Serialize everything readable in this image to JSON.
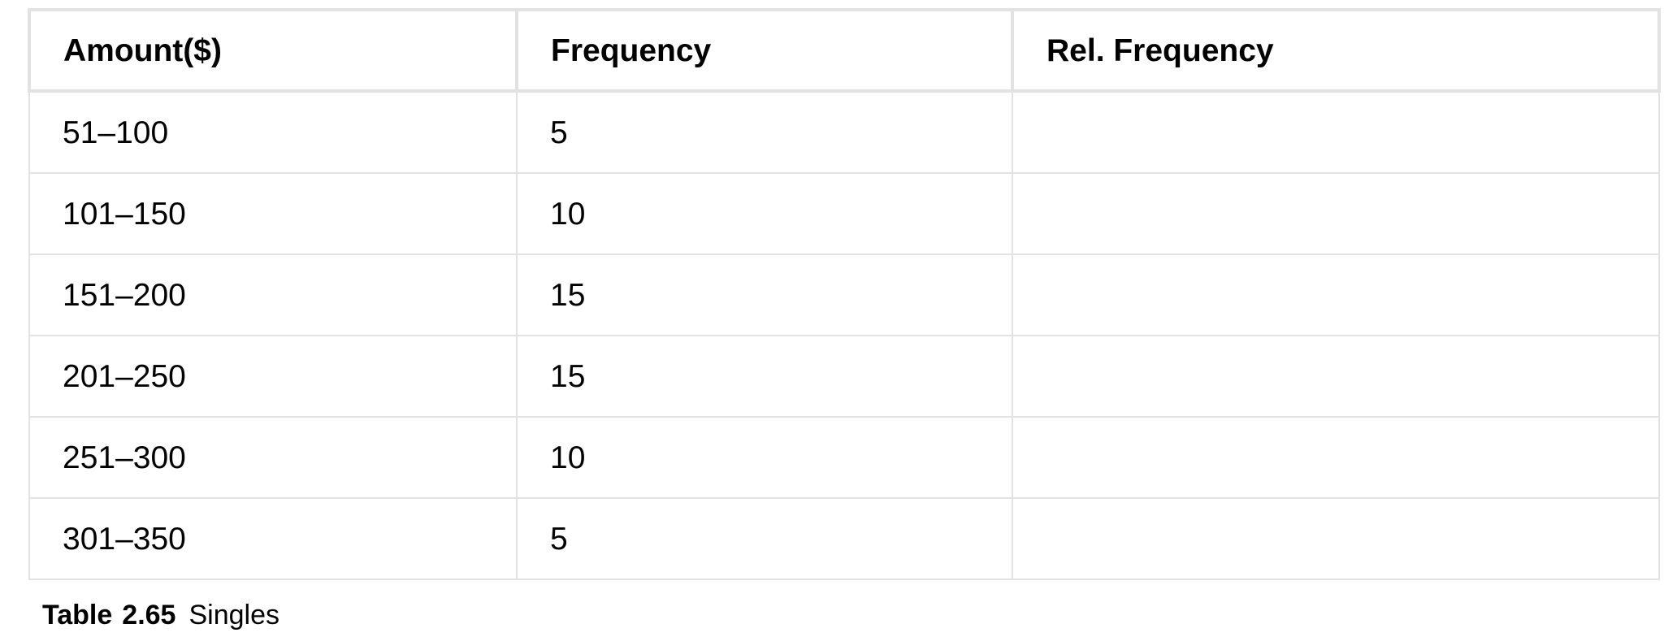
{
  "table": {
    "headers": [
      "Amount($)",
      "Frequency",
      "Rel. Frequency"
    ],
    "rows": [
      [
        "51–100",
        "5",
        ""
      ],
      [
        "101–150",
        "10",
        ""
      ],
      [
        "151–200",
        "15",
        ""
      ],
      [
        "201–250",
        "15",
        ""
      ],
      [
        "251–300",
        "10",
        ""
      ],
      [
        "301–350",
        "5",
        ""
      ]
    ]
  },
  "caption": {
    "label": "Table",
    "number": "2.65",
    "title": "Singles"
  }
}
